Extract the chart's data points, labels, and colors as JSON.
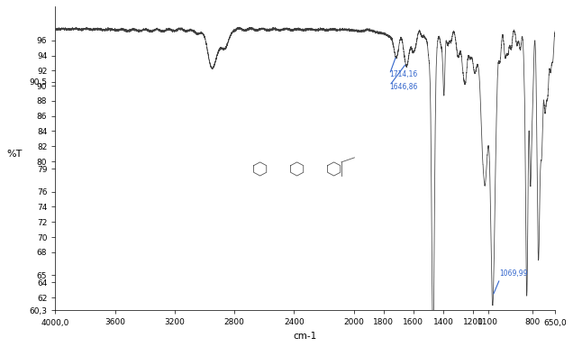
{
  "xlabel": "cm-1",
  "ylabel": "%T",
  "xlim_left": 4000.0,
  "xlim_right": 650.0,
  "ylim_bottom": 60.3,
  "ylim_top": 100.5,
  "ytick_vals": [
    90.5,
    96,
    94,
    92,
    90,
    88,
    86,
    84,
    82,
    80,
    79,
    76,
    74,
    72,
    70,
    68,
    65,
    64,
    62,
    60.3
  ],
  "ytick_labels": [
    "90,5",
    "96",
    "94",
    "92",
    "90",
    "88",
    "86",
    "84",
    "82",
    "80",
    "79",
    "76",
    "74",
    "72",
    "70",
    "68",
    "65",
    "64",
    "62",
    "60,3"
  ],
  "xtick_vals": [
    4000.0,
    3600,
    3200,
    2800,
    2400,
    2000,
    1800,
    1600,
    1400,
    1200,
    1100,
    800,
    650.0
  ],
  "xtick_labels": [
    "4000,0",
    "3600",
    "3200",
    "2800",
    "2400",
    "2000",
    "1800",
    "1600",
    "1400",
    "1200",
    "1100",
    "800",
    "650,0"
  ],
  "ann1_wavenumber": 1714.16,
  "ann1_label": "1714,16",
  "ann2_wavenumber": 1646.86,
  "ann2_label": "1646,86",
  "ann3_wavenumber": 1069.99,
  "ann3_label": "1069,99",
  "line_color": "#404040",
  "ann_color": "#3366cc",
  "bg_color": "#ffffff",
  "fig_width": 6.36,
  "fig_height": 3.85,
  "dpi": 100
}
